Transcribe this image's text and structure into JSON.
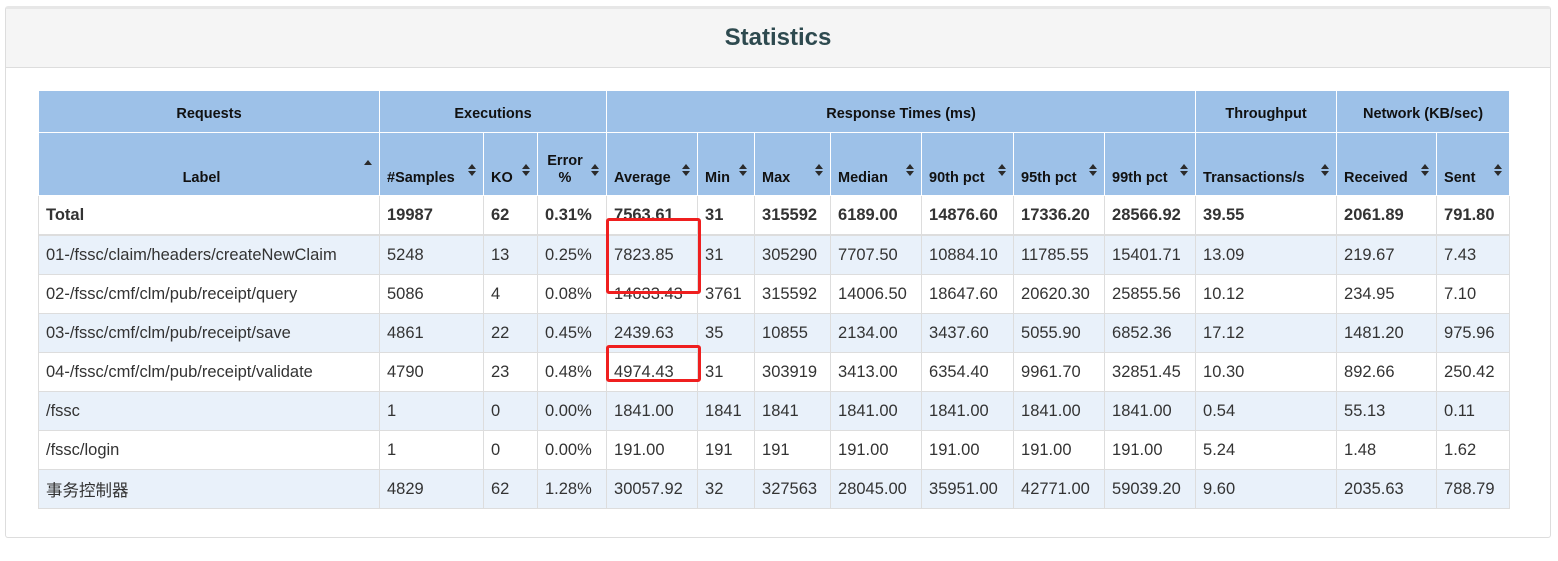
{
  "title": "Statistics",
  "groups": [
    "Requests",
    "Executions",
    "Response Times (ms)",
    "Throughput",
    "Network (KB/sec)"
  ],
  "columns": [
    "Label",
    "#Samples",
    "KO",
    "Error %",
    "Average",
    "Min",
    "Max",
    "Median",
    "90th pct",
    "95th pct",
    "99th pct",
    "Transactions/s",
    "Received",
    "Sent"
  ],
  "total": [
    "Total",
    "19987",
    "62",
    "0.31%",
    "7563.61",
    "31",
    "315592",
    "6189.00",
    "14876.60",
    "17336.20",
    "28566.92",
    "39.55",
    "2061.89",
    "791.80"
  ],
  "rows": [
    [
      "01-/fssc/claim/headers/createNewClaim",
      "5248",
      "13",
      "0.25%",
      "7823.85",
      "31",
      "305290",
      "7707.50",
      "10884.10",
      "11785.55",
      "15401.71",
      "13.09",
      "219.67",
      "7.43"
    ],
    [
      "02-/fssc/cmf/clm/pub/receipt/query",
      "5086",
      "4",
      "0.08%",
      "14633.43",
      "3761",
      "315592",
      "14006.50",
      "18647.60",
      "20620.30",
      "25855.56",
      "10.12",
      "234.95",
      "7.10"
    ],
    [
      "03-/fssc/cmf/clm/pub/receipt/save",
      "4861",
      "22",
      "0.45%",
      "2439.63",
      "35",
      "10855",
      "2134.00",
      "3437.60",
      "5055.90",
      "6852.36",
      "17.12",
      "1481.20",
      "975.96"
    ],
    [
      "04-/fssc/cmf/clm/pub/receipt/validate",
      "4790",
      "23",
      "0.48%",
      "4974.43",
      "31",
      "303919",
      "3413.00",
      "6354.40",
      "9961.70",
      "32851.45",
      "10.30",
      "892.66",
      "250.42"
    ],
    [
      "/fssc",
      "1",
      "0",
      "0.00%",
      "1841.00",
      "1841",
      "1841",
      "1841.00",
      "1841.00",
      "1841.00",
      "1841.00",
      "0.54",
      "55.13",
      "0.11"
    ],
    [
      "/fssc/login",
      "1",
      "0",
      "0.00%",
      "191.00",
      "191",
      "191",
      "191.00",
      "191.00",
      "191.00",
      "191.00",
      "5.24",
      "1.48",
      "1.62"
    ],
    [
      "事务控制器",
      "4829",
      "62",
      "1.28%",
      "30057.92",
      "32",
      "327563",
      "28045.00",
      "35951.00",
      "42771.00",
      "59039.20",
      "9.60",
      "2035.63",
      "788.79"
    ]
  ],
  "sort": {
    "column": "Label",
    "direction": "ascending"
  },
  "colors": {
    "header_bg": "#9dc1e8",
    "odd_row_bg": "#e9f1fa",
    "highlight": "#ef1f1f"
  }
}
